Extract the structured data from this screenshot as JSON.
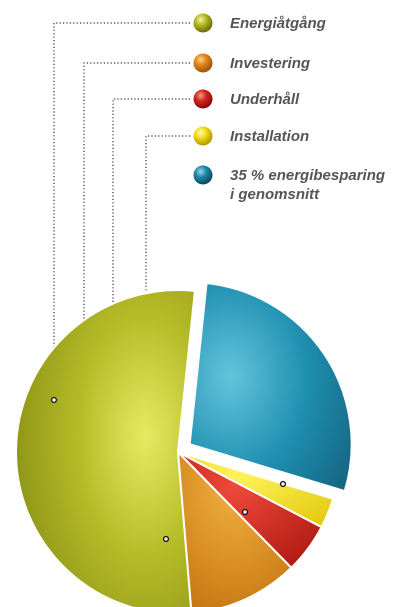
{
  "chart_data": {
    "type": "pie",
    "title": "",
    "slices": [
      {
        "name": "Energiåtgång",
        "value": 53,
        "color": "#a6ad1e"
      },
      {
        "name": "Investering",
        "value": 11,
        "color": "#d88717"
      },
      {
        "name": "Underhåll",
        "value": 5,
        "color": "#d2261f"
      },
      {
        "name": "Installation",
        "value": 3,
        "color": "#f0dc0f"
      },
      {
        "name": "35 % energibesparing i genomsnitt",
        "value": 28,
        "color": "#1f89a8",
        "exploded": true
      }
    ],
    "legend": {
      "placement": "top-right",
      "items": [
        {
          "label": "Energiåtgång",
          "color": "#a6ad1e"
        },
        {
          "label": "Investering",
          "color": "#d88717"
        },
        {
          "label": "Underhåll",
          "color": "#d2261f"
        },
        {
          "label": "Installation",
          "color": "#f0dc0f"
        },
        {
          "label_lines": [
            "35 % energibesparing",
            "i genomsnitt"
          ],
          "color": "#1f89a8"
        }
      ]
    }
  }
}
